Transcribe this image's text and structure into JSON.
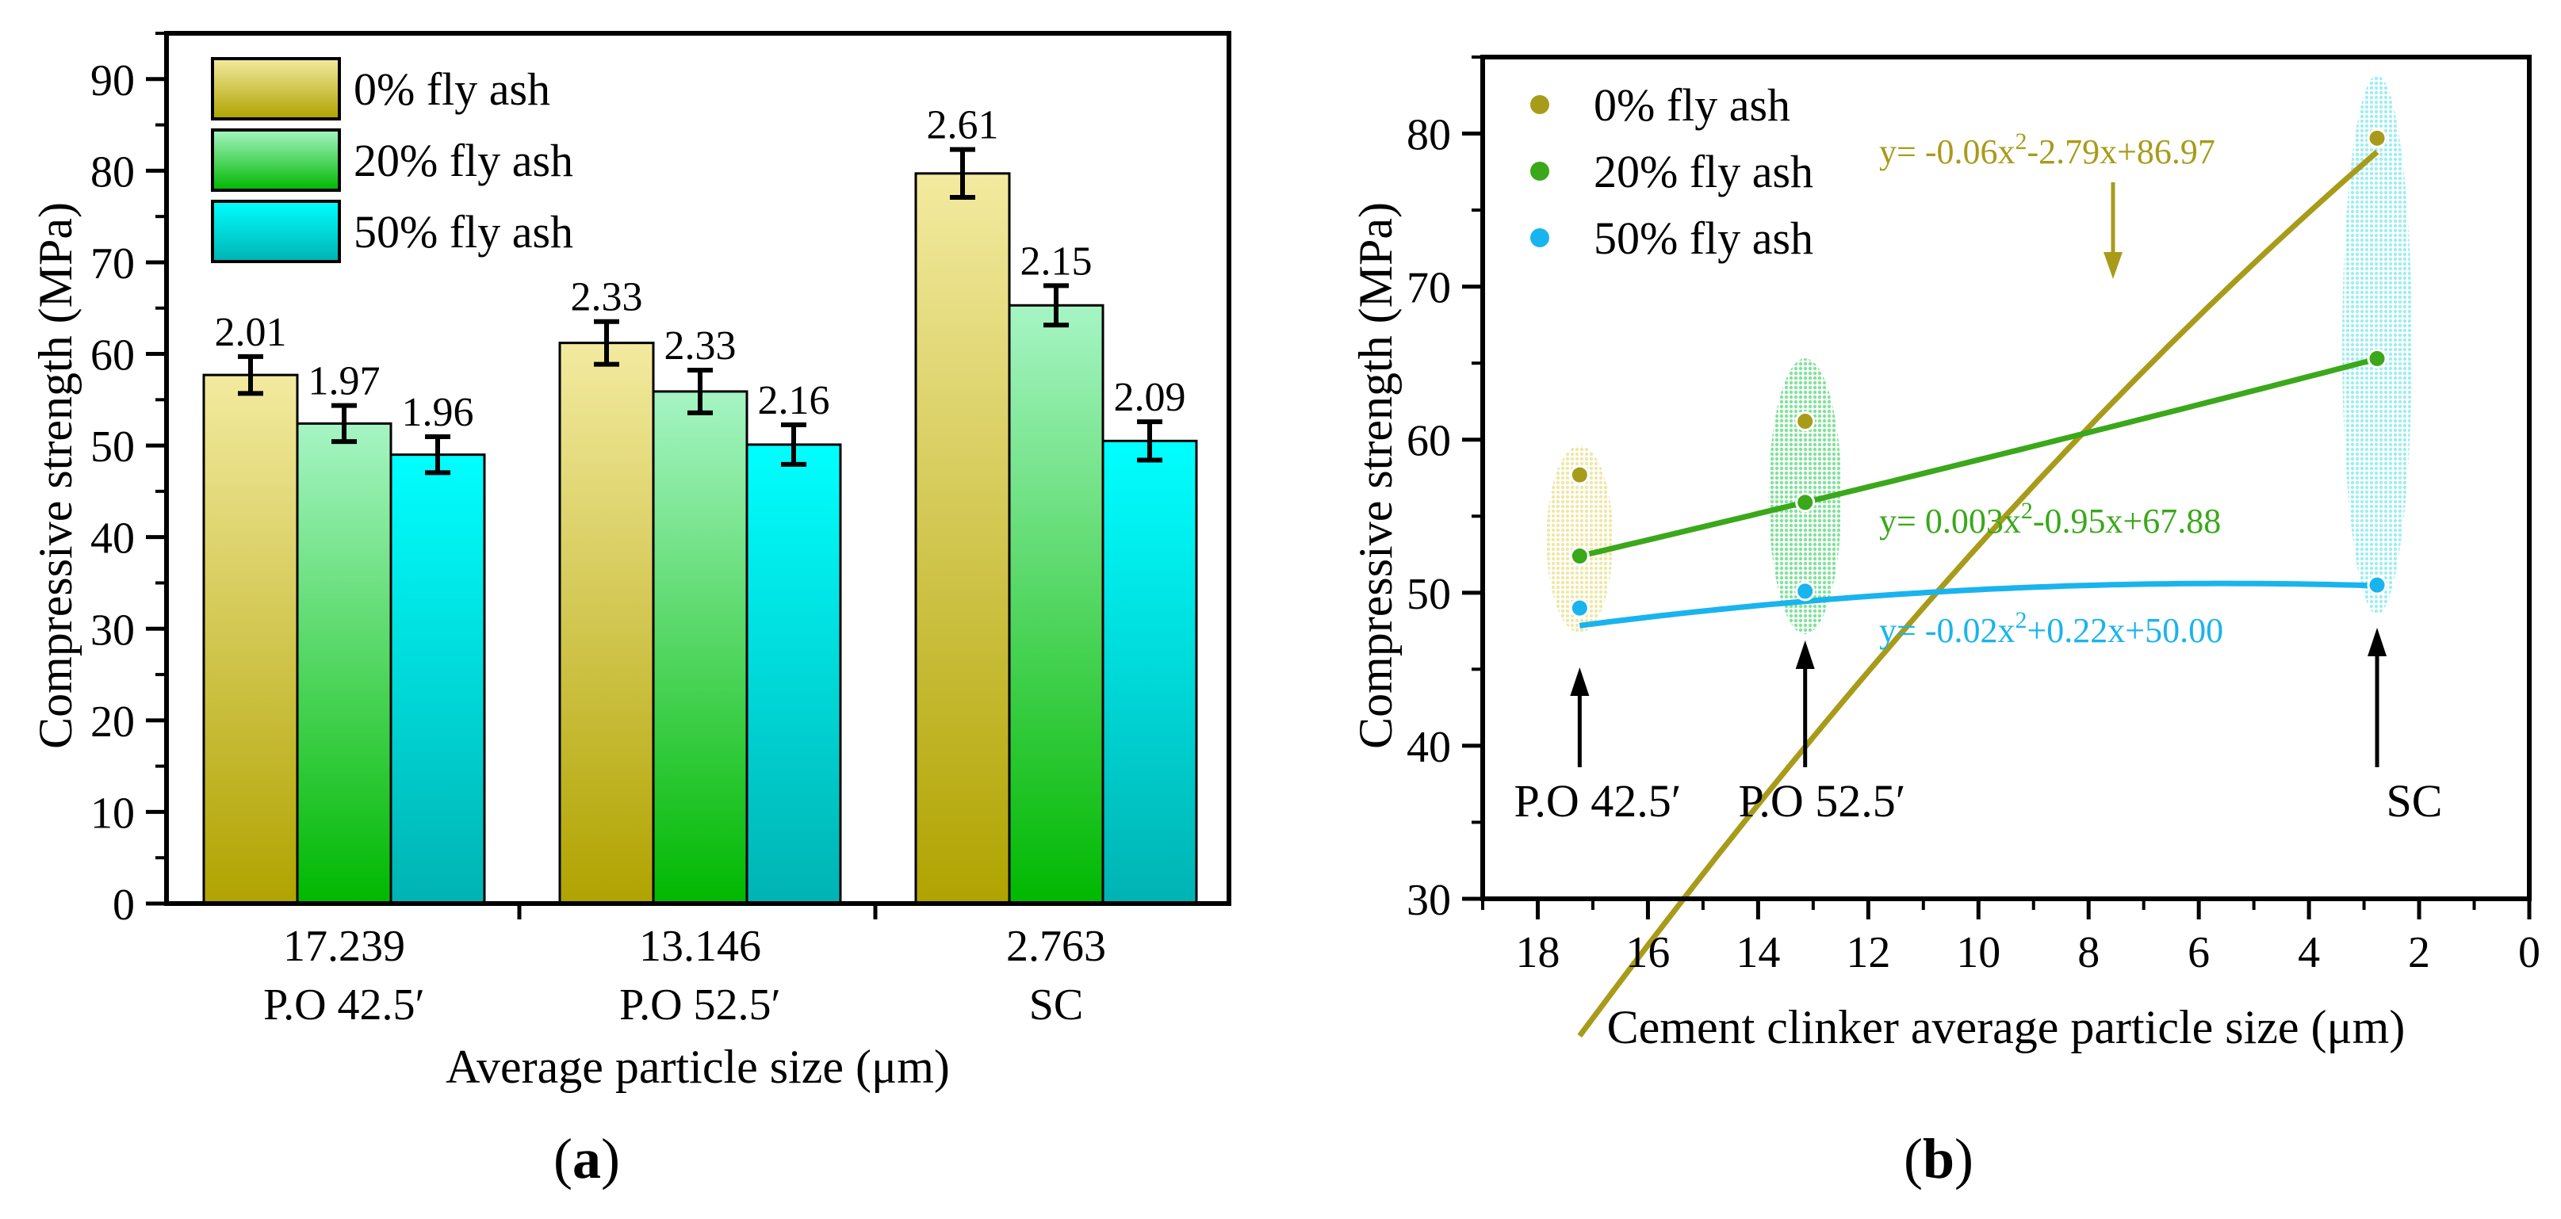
{
  "chart_data": [
    {
      "type": "bar",
      "panel_label": "a",
      "xlabel": "Average particle size (μm)",
      "ylabel": "Compressive strength (MPa)",
      "ylim": [
        0,
        95
      ],
      "yticks": [
        0,
        10,
        20,
        30,
        40,
        50,
        60,
        70,
        80,
        90
      ],
      "categories": [
        {
          "size": "17.239",
          "name": "P.O 42.5′"
        },
        {
          "size": "13.146",
          "name": "P.O 52.5′"
        },
        {
          "size": "2.763",
          "name": "SC"
        }
      ],
      "series": [
        {
          "name": "0% fly ash",
          "values": [
            57.7,
            61.2,
            79.7
          ],
          "errors": [
            2.01,
            2.33,
            2.61
          ],
          "labels": [
            "2.01",
            "2.33",
            "2.61"
          ],
          "color_top": "#f3eaa0",
          "color_bottom": "#b0a300"
        },
        {
          "name": "20% fly ash",
          "values": [
            52.4,
            55.9,
            65.3
          ],
          "errors": [
            1.97,
            2.33,
            2.15
          ],
          "labels": [
            "1.97",
            "2.33",
            "2.15"
          ],
          "color_top": "#a6f5c4",
          "color_bottom": "#00b800"
        },
        {
          "name": "50% fly ash",
          "values": [
            49.0,
            50.1,
            50.5
          ],
          "errors": [
            1.96,
            2.16,
            2.09
          ],
          "labels": [
            "1.96",
            "2.16",
            "2.09"
          ],
          "color_top": "#00ffff",
          "color_bottom": "#00b3b3"
        }
      ],
      "legend_position": "top-left"
    },
    {
      "type": "scatter",
      "panel_label": "b",
      "xlabel": "Cement clinker average particle size (μm)",
      "ylabel": "Compressive strength (MPa)",
      "xlim": [
        19,
        0
      ],
      "ylim": [
        30,
        85
      ],
      "xticks": [
        18,
        16,
        14,
        12,
        10,
        8,
        6,
        4,
        2,
        0
      ],
      "yticks": [
        30,
        40,
        50,
        60,
        70,
        80
      ],
      "x": [
        17.239,
        13.146,
        2.763
      ],
      "series": [
        {
          "name": "0% fly ash",
          "values": [
            57.7,
            61.2,
            79.7
          ],
          "color": "#a89b1a",
          "fit": [
            -0.06,
            -2.79,
            86.97
          ],
          "eq_prefix": "y= -0.06x",
          "eq_suffix": "-2.79x+86.97"
        },
        {
          "name": "20% fly ash",
          "values": [
            52.4,
            55.9,
            65.3
          ],
          "color": "#3aa81a",
          "fit": [
            0.003,
            -0.95,
            67.88
          ],
          "eq_prefix": "y= 0.003x",
          "eq_suffix": "-0.95x+67.88"
        },
        {
          "name": "50% fly ash",
          "values": [
            49.0,
            50.1,
            50.5
          ],
          "color": "#19b4ee",
          "fit": [
            -0.02,
            0.22,
            50.0
          ],
          "eq_prefix": "y= -0.02x",
          "eq_suffix": "+0.22x+50.00"
        }
      ],
      "annotations": [
        "P.O 42.5′",
        "P.O 52.5′",
        "SC"
      ],
      "legend_position": "top-left"
    }
  ]
}
